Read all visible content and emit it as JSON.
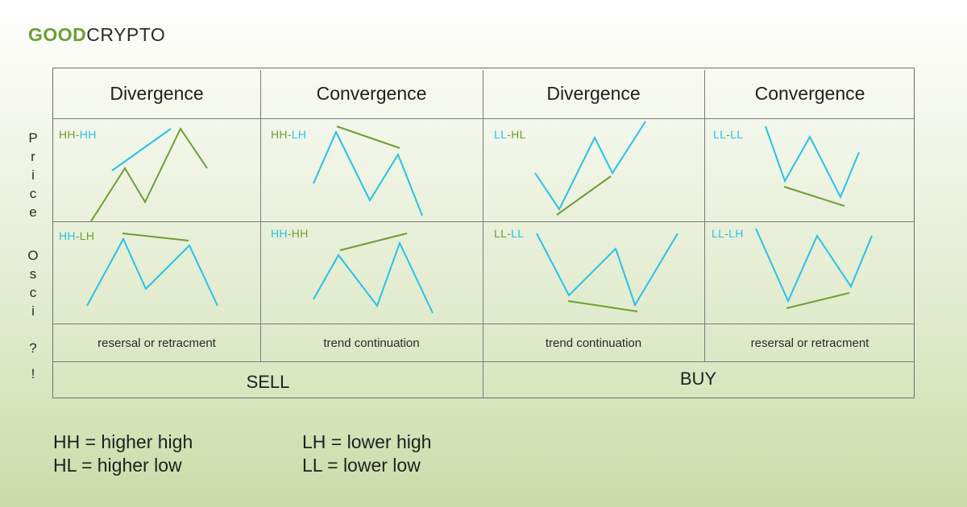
{
  "logo": {
    "good": "GOOD",
    "crypto": "CRYPTO"
  },
  "side_labels": {
    "price": [
      "P",
      "r",
      "i",
      "c",
      "e"
    ],
    "osci": [
      "O",
      "s",
      "c",
      "i",
      "?",
      "!"
    ]
  },
  "columns": [
    {
      "header": "Divergence",
      "price_label_a": "HH",
      "price_label_b": "HH",
      "osci_label_a": "HH",
      "osci_label_b": "LH",
      "note": "resersal or retracment"
    },
    {
      "header": "Convergence",
      "price_label_a": "HH",
      "price_label_b": "LH",
      "osci_label_a": "HH",
      "osci_label_b": "HH",
      "note": "trend continuation"
    },
    {
      "header": "Divergence",
      "price_label_a": "LL",
      "price_label_b": "HL",
      "osci_label_a": "LL",
      "osci_label_b": "LL",
      "note": "trend continuation"
    },
    {
      "header": "Convergence",
      "price_label_a": "LL",
      "price_label_b": "LL",
      "osci_label_a": "LL",
      "osci_label_b": "LH",
      "note": "resersal or retracment"
    }
  ],
  "actions": {
    "sell": "SELL",
    "buy": "BUY"
  },
  "legend": {
    "hh": "HH = higher high",
    "hl": "HL = higher low",
    "lh": "LH = lower high",
    "ll": "LL = lower low"
  },
  "colors": {
    "green": "#6aa033",
    "blue": "#25c3ea",
    "grid": "#7a7a7a"
  }
}
